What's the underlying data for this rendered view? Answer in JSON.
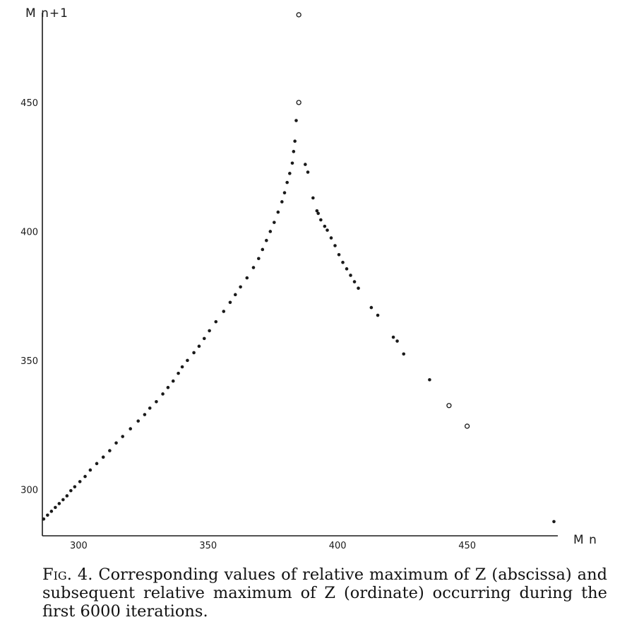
{
  "chart_data": {
    "type": "scatter",
    "title": "",
    "xlabel": "M n",
    "ylabel": "M n+1",
    "xlim": [
      286,
      485
    ],
    "ylim": [
      282,
      487
    ],
    "xticks": [
      300,
      350,
      400,
      450
    ],
    "yticks": [
      300,
      350,
      400,
      450
    ],
    "grid": false,
    "legend": "none",
    "series": [
      {
        "marker": "filled",
        "points": [
          [
            286.5,
            288.5
          ],
          [
            288,
            290
          ],
          [
            289.5,
            291.5
          ],
          [
            291,
            293
          ],
          [
            292.5,
            294.5
          ],
          [
            294,
            296
          ],
          [
            295.5,
            297.5
          ],
          [
            297,
            299.5
          ],
          [
            298.5,
            301
          ],
          [
            300.5,
            303
          ],
          [
            302.5,
            305
          ],
          [
            304.5,
            307.5
          ],
          [
            307,
            310
          ],
          [
            309.5,
            312.5
          ],
          [
            312,
            315
          ],
          [
            314.5,
            318
          ],
          [
            317,
            320.5
          ],
          [
            320,
            323.5
          ],
          [
            323,
            326.5
          ],
          [
            325.5,
            329
          ],
          [
            327.5,
            331.5
          ],
          [
            330,
            334
          ],
          [
            332.5,
            337
          ],
          [
            334.5,
            339.5
          ],
          [
            336.5,
            342
          ],
          [
            338.5,
            345
          ],
          [
            340,
            347.5
          ],
          [
            342,
            350
          ],
          [
            344.5,
            353
          ],
          [
            346.5,
            355.5
          ],
          [
            348.5,
            358.5
          ],
          [
            350.5,
            361.5
          ],
          [
            353,
            365
          ],
          [
            356,
            369
          ],
          [
            358.5,
            372.5
          ],
          [
            360.5,
            375.5
          ],
          [
            362.5,
            378.5
          ],
          [
            365,
            382
          ],
          [
            367.5,
            386
          ],
          [
            369.5,
            389.5
          ],
          [
            371,
            393
          ],
          [
            372.5,
            396.5
          ],
          [
            374,
            400
          ],
          [
            375.5,
            403.5
          ],
          [
            377,
            407.5
          ],
          [
            378.5,
            411.5
          ],
          [
            379.5,
            415
          ],
          [
            380.5,
            419
          ],
          [
            381.5,
            422.5
          ],
          [
            382.5,
            426.5
          ],
          [
            383,
            431
          ],
          [
            383.5,
            435
          ],
          [
            384,
            443
          ],
          [
            387.5,
            426
          ],
          [
            388.5,
            423
          ],
          [
            390.5,
            413
          ],
          [
            392,
            408
          ],
          [
            392.5,
            407
          ],
          [
            393.5,
            404.5
          ],
          [
            395,
            402
          ],
          [
            396,
            400.5
          ],
          [
            397.5,
            397.5
          ],
          [
            399,
            394.5
          ],
          [
            400.5,
            391
          ],
          [
            402,
            388
          ],
          [
            403.5,
            385.5
          ],
          [
            405,
            383
          ],
          [
            406.5,
            380.5
          ],
          [
            408,
            378
          ],
          [
            413,
            370.5
          ],
          [
            415.5,
            367.5
          ],
          [
            421.5,
            359
          ],
          [
            423,
            357.5
          ],
          [
            425.5,
            352.5
          ],
          [
            435.5,
            342.5
          ],
          [
            483.5,
            287.5
          ]
        ]
      },
      {
        "marker": "open",
        "points": [
          [
            385,
            484
          ],
          [
            385,
            450
          ],
          [
            443,
            332.5
          ],
          [
            450,
            324.5
          ]
        ]
      }
    ]
  },
  "caption": {
    "label": "Fig. 4.",
    "text": " Corresponding values of relative maximum of Z (abscissa) and subsequent relative maximum of Z (ordinate) occurring during the first 6000 iterations."
  }
}
